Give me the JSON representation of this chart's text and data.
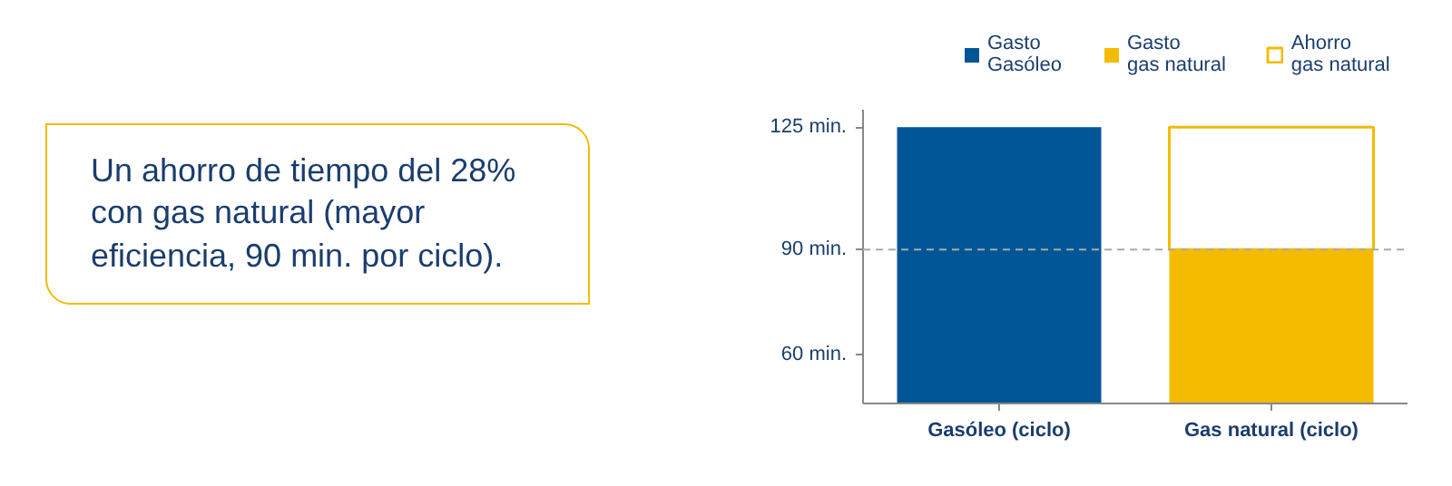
{
  "chart_data": {
    "type": "bar",
    "legend": "top",
    "categories": [
      "Gasóleo (ciclo)",
      "Gas natural (ciclo)"
    ],
    "series": [
      {
        "name": "Gasto\nGasóleo",
        "color": "#005596",
        "base": [
          46,
          null
        ],
        "values": [
          79,
          null
        ]
      },
      {
        "name": "Gasto\ngas natural",
        "color": "#f5bb00",
        "base": [
          null,
          46
        ],
        "values": [
          null,
          44
        ]
      },
      {
        "name": "Ahorro\ngas natural",
        "color": "#f5bb00",
        "colors": [
          null,
          "#ffffff"
        ],
        "base": [
          null,
          90
        ],
        "values": [
          null,
          35
        ]
      }
    ],
    "ylim": [
      46,
      130
    ],
    "yticks": [
      {
        "value": 60,
        "label": "60 min."
      },
      {
        "value": 90,
        "label": "90 min."
      },
      {
        "value": 125,
        "label": "125 min."
      }
    ],
    "ref_lines": [
      {
        "axis": "y",
        "value": 90,
        "label": null,
        "color": "#aaaaaa",
        "line_style": "dashed"
      }
    ],
    "grid": false,
    "annotations": [
      "Un ahorro de tiempo del 28% con gas natural (mayor eficiencia, 90 min. por ciclo)."
    ]
  }
}
